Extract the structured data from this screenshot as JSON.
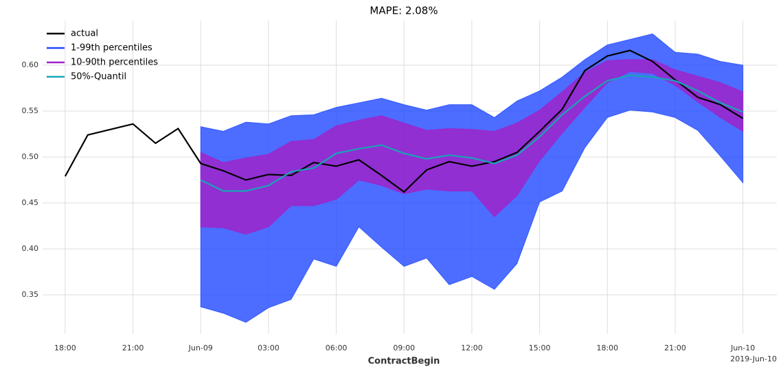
{
  "chart_data": {
    "type": "line",
    "title": "MAPE: 2.08%",
    "xlabel": "ContractBegin",
    "x_offset_label": "2019-Jun-10",
    "x": [
      "2019-06-08T18:00",
      "2019-06-08T19:00",
      "2019-06-08T20:00",
      "2019-06-08T21:00",
      "2019-06-08T22:00",
      "2019-06-08T23:00",
      "2019-06-09T00:00",
      "2019-06-09T01:00",
      "2019-06-09T02:00",
      "2019-06-09T03:00",
      "2019-06-09T04:00",
      "2019-06-09T05:00",
      "2019-06-09T06:00",
      "2019-06-09T07:00",
      "2019-06-09T08:00",
      "2019-06-09T09:00",
      "2019-06-09T10:00",
      "2019-06-09T11:00",
      "2019-06-09T12:00",
      "2019-06-09T13:00",
      "2019-06-09T14:00",
      "2019-06-09T15:00",
      "2019-06-09T16:00",
      "2019-06-09T17:00",
      "2019-06-09T18:00",
      "2019-06-09T19:00",
      "2019-06-09T20:00",
      "2019-06-09T21:00",
      "2019-06-09T22:00",
      "2019-06-09T23:00",
      "2019-06-10T00:00"
    ],
    "series": [
      {
        "name": "actual",
        "kind": "line",
        "color": "#000000",
        "values": [
          0.479,
          0.524,
          0.53,
          0.536,
          0.515,
          0.531,
          0.493,
          0.485,
          0.475,
          0.481,
          0.48,
          0.494,
          0.49,
          0.497,
          0.48,
          0.462,
          0.486,
          0.495,
          0.49,
          0.495,
          0.505,
          0.528,
          0.552,
          0.594,
          0.61,
          0.616,
          0.604,
          0.584,
          0.565,
          0.557,
          0.542
        ]
      },
      {
        "name": "1-99th percentiles",
        "kind": "band",
        "color": "#1f48ff",
        "upper": [
          null,
          null,
          null,
          null,
          null,
          null,
          0.533,
          0.528,
          0.538,
          0.536,
          0.545,
          0.546,
          0.554,
          0.559,
          0.564,
          0.557,
          0.551,
          0.557,
          0.557,
          0.543,
          0.561,
          0.572,
          0.587,
          0.606,
          0.622,
          0.628,
          0.634,
          0.614,
          0.612,
          0.604,
          0.6
        ],
        "lower": [
          null,
          null,
          null,
          null,
          null,
          null,
          0.337,
          0.33,
          0.32,
          0.336,
          0.345,
          0.389,
          0.381,
          0.424,
          0.402,
          0.381,
          0.39,
          0.361,
          0.37,
          0.356,
          0.384,
          0.451,
          0.463,
          0.51,
          0.543,
          0.551,
          0.549,
          0.543,
          0.529,
          0.501,
          0.472
        ]
      },
      {
        "name": "10-90th percentiles",
        "kind": "band",
        "color": "#a31fc8",
        "upper": [
          null,
          null,
          null,
          null,
          null,
          null,
          0.505,
          0.494,
          0.499,
          0.503,
          0.517,
          0.519,
          0.534,
          0.54,
          0.545,
          0.537,
          0.529,
          0.531,
          0.53,
          0.528,
          0.537,
          0.551,
          0.571,
          0.592,
          0.605,
          0.606,
          0.606,
          0.595,
          0.588,
          0.581,
          0.571
        ],
        "lower": [
          null,
          null,
          null,
          null,
          null,
          null,
          0.424,
          0.423,
          0.416,
          0.424,
          0.447,
          0.447,
          0.454,
          0.475,
          0.469,
          0.46,
          0.465,
          0.463,
          0.463,
          0.435,
          0.458,
          0.496,
          0.526,
          0.554,
          0.581,
          0.593,
          0.591,
          0.578,
          0.56,
          0.543,
          0.528
        ]
      },
      {
        "name": "50%-Quantil",
        "kind": "line",
        "color": "#17a5b5",
        "values": [
          null,
          null,
          null,
          null,
          null,
          null,
          0.475,
          0.463,
          0.463,
          0.469,
          0.484,
          0.488,
          0.504,
          0.509,
          0.513,
          0.504,
          0.498,
          0.502,
          0.499,
          0.493,
          0.502,
          0.522,
          0.546,
          0.566,
          0.583,
          0.589,
          0.587,
          0.583,
          0.572,
          0.559,
          0.549
        ]
      }
    ],
    "xlim": [
      "2019-06-08T17:00",
      "2019-06-10T01:30"
    ],
    "ylim": [
      0.3075,
      0.6485
    ],
    "xticks": [
      {
        "value": "2019-06-08T18:00",
        "label": "18:00"
      },
      {
        "value": "2019-06-08T21:00",
        "label": "21:00"
      },
      {
        "value": "2019-06-09T00:00",
        "label": "Jun-09"
      },
      {
        "value": "2019-06-09T03:00",
        "label": "03:00"
      },
      {
        "value": "2019-06-09T06:00",
        "label": "06:00"
      },
      {
        "value": "2019-06-09T09:00",
        "label": "09:00"
      },
      {
        "value": "2019-06-09T12:00",
        "label": "12:00"
      },
      {
        "value": "2019-06-09T15:00",
        "label": "15:00"
      },
      {
        "value": "2019-06-09T18:00",
        "label": "18:00"
      },
      {
        "value": "2019-06-09T21:00",
        "label": "21:00"
      },
      {
        "value": "2019-06-10T00:00",
        "label": "Jun-10"
      }
    ],
    "yticks": [
      0.35,
      {
        "value": 0.4,
        "label": "0.40"
      },
      0.45,
      {
        "value": 0.5,
        "label": "0.50"
      },
      0.55,
      {
        "value": 0.6,
        "label": "0.60"
      }
    ],
    "grid": true,
    "legend": "upper left"
  }
}
